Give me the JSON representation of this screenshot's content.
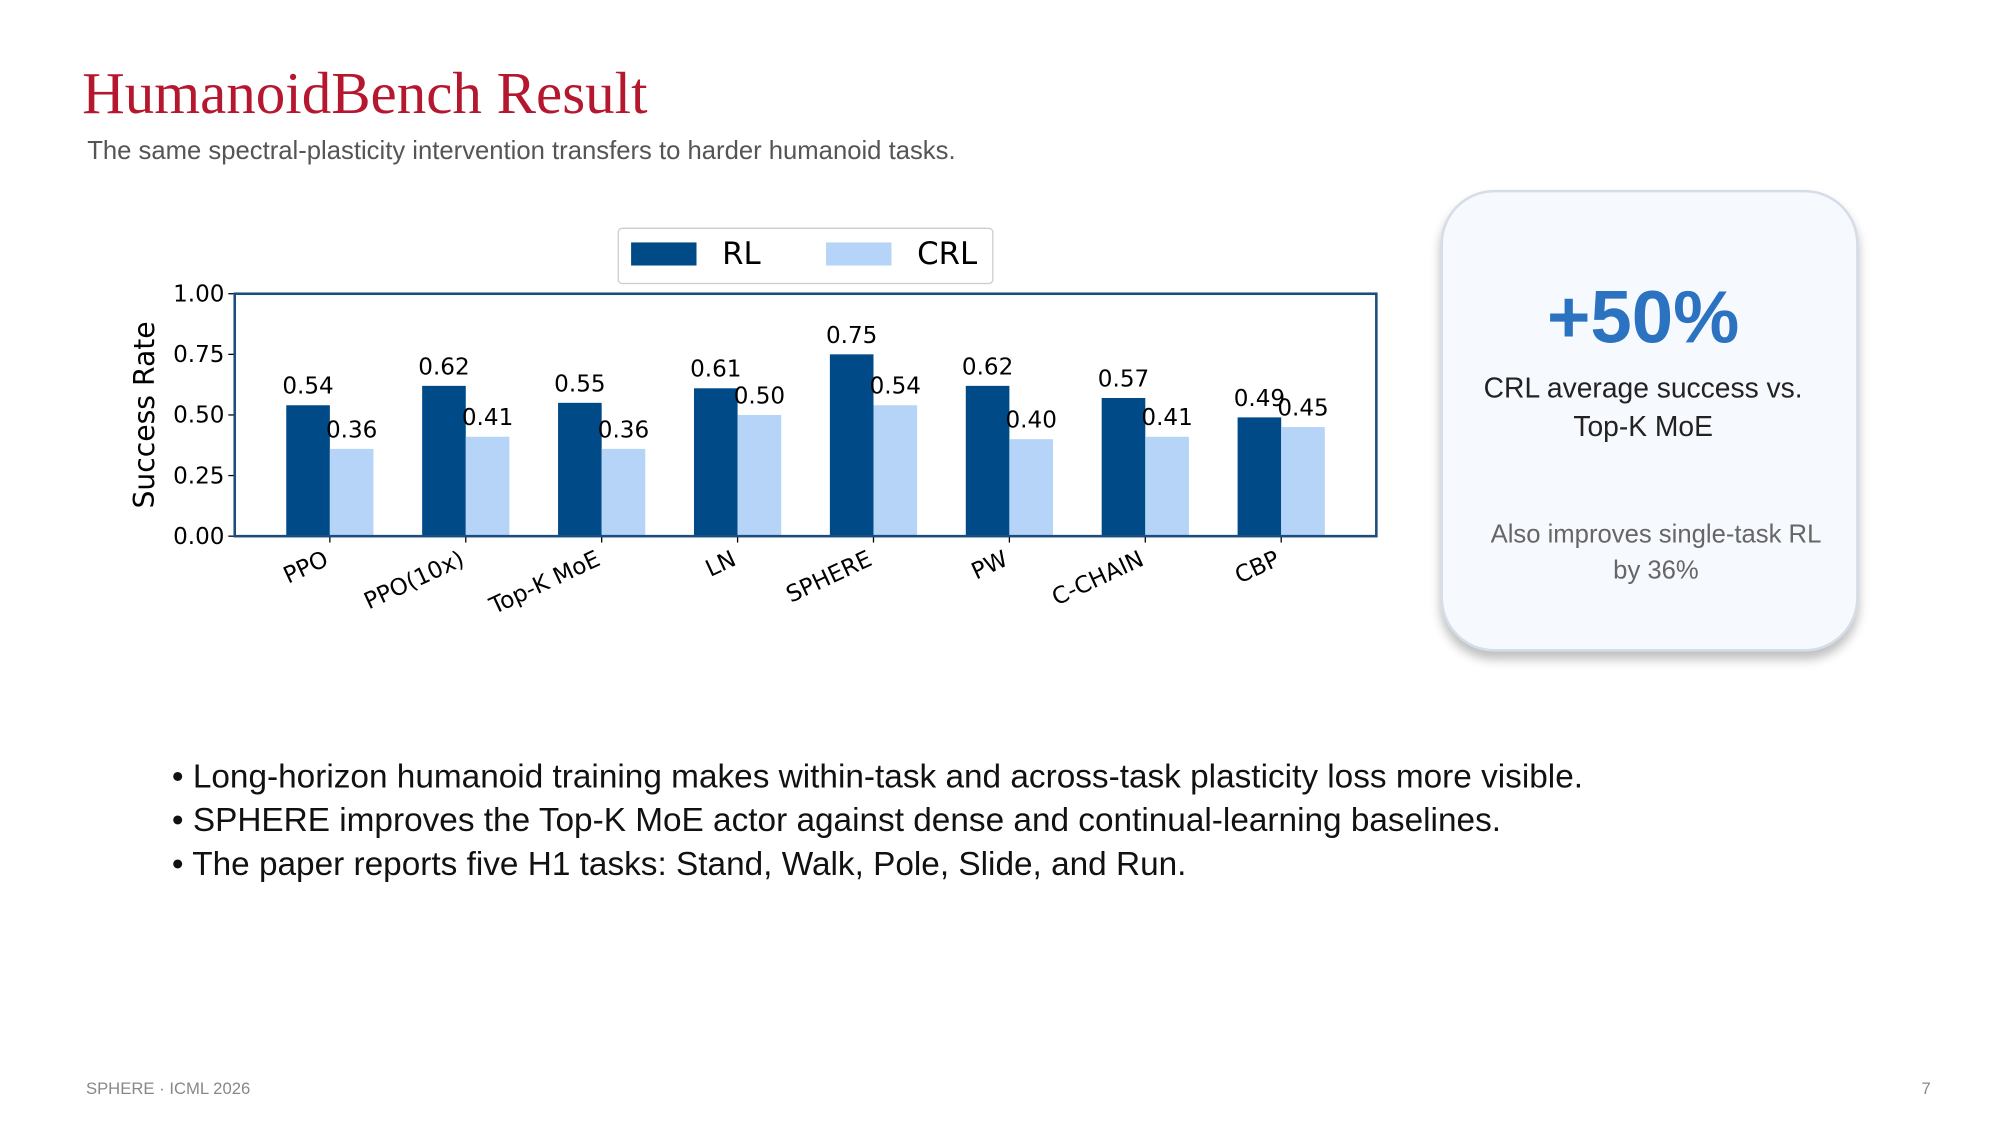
{
  "header": {
    "title": "HumanoidBench Result",
    "subtitle": "The same spectral-plasticity intervention transfers to harder humanoid tasks."
  },
  "chart_data": {
    "type": "bar",
    "ylabel": "Success Rate",
    "categories": [
      "PPO",
      "PPO(10x)",
      "Top-K MoE",
      "LN",
      "SPHERE",
      "PW",
      "C-CHAIN",
      "CBP"
    ],
    "series": [
      {
        "name": "RL",
        "color": "#004a87",
        "values": [
          0.54,
          0.62,
          0.55,
          0.61,
          0.75,
          0.62,
          0.57,
          0.49
        ],
        "value_labels": [
          "0.54",
          "0.62",
          "0.55",
          "0.61",
          "0.75",
          "0.62",
          "0.57",
          "0.49"
        ]
      },
      {
        "name": "CRL",
        "color": "#b6d4f8",
        "values": [
          0.36,
          0.41,
          0.36,
          0.5,
          0.54,
          0.4,
          0.41,
          0.45
        ],
        "value_labels": [
          "0.36",
          "0.41",
          "0.36",
          "0.50",
          "0.54",
          "0.40",
          "0.41",
          "0.45"
        ]
      }
    ],
    "ylim": [
      0,
      1
    ],
    "yticks": [
      {
        "value": 0,
        "label": "0.00"
      },
      {
        "value": 0.25,
        "label": "0.25"
      },
      {
        "value": 0.5,
        "label": "0.50"
      },
      {
        "value": 0.75,
        "label": "0.75"
      },
      {
        "value": 1,
        "label": "1.00"
      }
    ],
    "legend": "top"
  },
  "callout": {
    "stat": "+50%",
    "text": "CRL average success vs. Top-K MoE",
    "note": "Also improves single-task RL by 36%"
  },
  "bullets": [
    "Long-horizon humanoid training makes within-task and across-task plasticity loss more visible.",
    "SPHERE improves the Top-K MoE actor against dense and continual-learning baselines.",
    "The paper reports five H1 tasks: Stand, Walk, Pole, Slide, and Run."
  ],
  "footer": {
    "left": "SPHERE · ICML 2026",
    "page": "7"
  }
}
